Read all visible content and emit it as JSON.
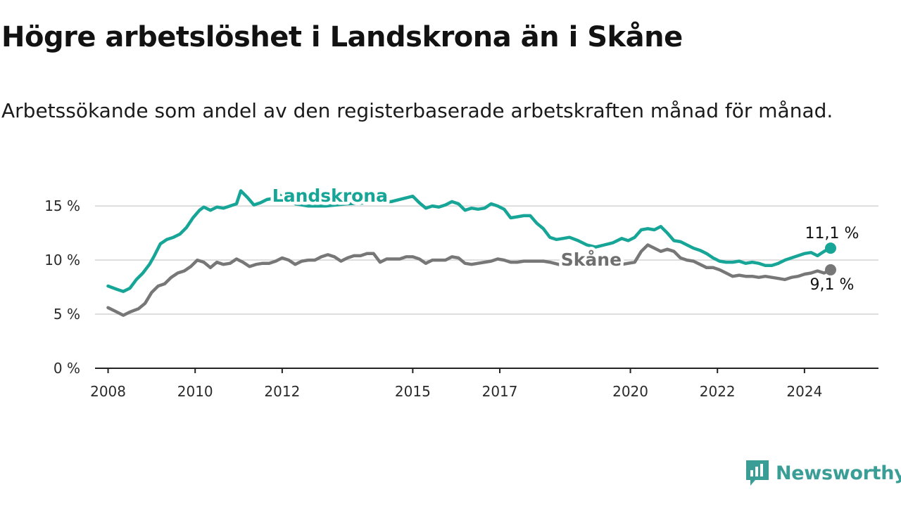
{
  "header": {
    "title": "Högre arbetslöshet i Landskrona än i Skåne",
    "subtitle": "Arbetssökande som andel av den registerbaserade arbetskraften månad för månad."
  },
  "brand": {
    "name": "Newsworthy",
    "icon": "newsworthy-logo-icon",
    "color": "#3a9e96"
  },
  "chart_data": {
    "type": "line",
    "title": "Högre arbetslöshet i Landskrona än i Skåne",
    "subtitle": "Arbetssökande som andel av den registerbaserade arbetskraften månad för månad.",
    "xlabel": "",
    "ylabel": "",
    "xlim": [
      2007.7,
      2025.7
    ],
    "ylim": [
      0,
      16.5
    ],
    "yticks": [
      0,
      5,
      10,
      15
    ],
    "ytick_labels": [
      "0 %",
      "5 %",
      "10 %",
      "15 %"
    ],
    "xticks": [
      2008,
      2010,
      2012,
      2015,
      2017,
      2020,
      2022,
      2024
    ],
    "xtick_labels": [
      "2008",
      "2010",
      "2012",
      "2015",
      "2017",
      "2020",
      "2022",
      "2024"
    ],
    "grid": true,
    "series": [
      {
        "name": "Landskrona",
        "color": "#16a597",
        "end_label": "11,1 %",
        "x": [
          2008.0,
          2008.2,
          2008.35,
          2008.5,
          2008.65,
          2008.8,
          2008.95,
          2009.05,
          2009.2,
          2009.35,
          2009.5,
          2009.65,
          2009.8,
          2009.95,
          2010.1,
          2010.2,
          2010.35,
          2010.5,
          2010.65,
          2010.8,
          2010.95,
          2011.05,
          2011.2,
          2011.35,
          2011.5,
          2011.65,
          2011.8,
          2011.95,
          2012.1,
          2012.3,
          2012.6,
          2013.0,
          2013.5,
          2014.0,
          2014.5,
          2015.0,
          2015.15,
          2015.3,
          2015.45,
          2015.6,
          2015.75,
          2015.9,
          2016.05,
          2016.2,
          2016.35,
          2016.5,
          2016.65,
          2016.8,
          2016.95,
          2017.1,
          2017.25,
          2017.4,
          2017.55,
          2017.7,
          2017.85,
          2018.0,
          2018.15,
          2018.3,
          2018.45,
          2018.6,
          2018.8,
          2019.0,
          2019.2,
          2019.4,
          2019.6,
          2019.8,
          2019.95,
          2020.1,
          2020.25,
          2020.4,
          2020.55,
          2020.7,
          2020.85,
          2021.0,
          2021.15,
          2021.3,
          2021.45,
          2021.6,
          2021.75,
          2021.9,
          2022.05,
          2022.2,
          2022.35,
          2022.5,
          2022.65,
          2022.8,
          2022.95,
          2023.1,
          2023.25,
          2023.4,
          2023.55,
          2023.7,
          2023.85,
          2024.0,
          2024.15,
          2024.3,
          2024.45,
          2024.6
        ],
        "values": [
          7.6,
          7.3,
          7.1,
          7.4,
          8.2,
          8.8,
          9.6,
          10.3,
          11.5,
          11.9,
          12.1,
          12.4,
          13.0,
          13.9,
          14.6,
          14.9,
          14.6,
          14.9,
          14.8,
          15.0,
          15.2,
          16.4,
          15.8,
          15.1,
          15.3,
          15.6,
          15.7,
          16.0,
          15.6,
          15.2,
          15.0,
          15.0,
          15.2,
          15.3,
          15.4,
          15.9,
          15.3,
          14.8,
          15.0,
          14.9,
          15.1,
          15.4,
          15.2,
          14.6,
          14.8,
          14.7,
          14.8,
          15.2,
          15.0,
          14.7,
          13.9,
          14.0,
          14.1,
          14.1,
          13.4,
          12.9,
          12.1,
          11.9,
          12.0,
          12.1,
          11.8,
          11.4,
          11.2,
          11.4,
          11.6,
          12.0,
          11.8,
          12.1,
          12.8,
          12.9,
          12.8,
          13.1,
          12.5,
          11.8,
          11.7,
          11.4,
          11.1,
          10.9,
          10.6,
          10.2,
          9.9,
          9.8,
          9.8,
          9.9,
          9.7,
          9.8,
          9.7,
          9.5,
          9.5,
          9.7,
          10.0,
          10.2,
          10.4,
          10.6,
          10.7,
          10.4,
          10.8,
          11.1
        ]
      },
      {
        "name": "Skåne",
        "color": "#777777",
        "end_label": "9,1 %",
        "x": [
          2008.0,
          2008.15,
          2008.35,
          2008.5,
          2008.7,
          2008.85,
          2009.0,
          2009.15,
          2009.3,
          2009.45,
          2009.6,
          2009.75,
          2009.9,
          2010.05,
          2010.2,
          2010.35,
          2010.5,
          2010.65,
          2010.8,
          2010.95,
          2011.1,
          2011.25,
          2011.4,
          2011.55,
          2011.7,
          2011.85,
          2012.0,
          2012.15,
          2012.3,
          2012.45,
          2012.6,
          2012.75,
          2012.9,
          2013.05,
          2013.2,
          2013.35,
          2013.5,
          2013.65,
          2013.8,
          2013.95,
          2014.1,
          2014.25,
          2014.4,
          2014.55,
          2014.7,
          2014.85,
          2015.0,
          2015.15,
          2015.3,
          2015.45,
          2015.6,
          2015.75,
          2015.9,
          2016.05,
          2016.2,
          2016.35,
          2016.5,
          2016.65,
          2016.8,
          2016.95,
          2017.1,
          2017.25,
          2017.4,
          2017.55,
          2017.7,
          2017.85,
          2018.0,
          2018.15,
          2018.35,
          2018.6,
          2018.9,
          2019.2,
          2019.5,
          2019.8,
          2019.95,
          2020.1,
          2020.25,
          2020.4,
          2020.55,
          2020.7,
          2020.85,
          2021.0,
          2021.15,
          2021.3,
          2021.45,
          2021.6,
          2021.75,
          2021.9,
          2022.05,
          2022.2,
          2022.35,
          2022.5,
          2022.65,
          2022.8,
          2022.95,
          2023.1,
          2023.25,
          2023.4,
          2023.55,
          2023.7,
          2023.85,
          2024.0,
          2024.15,
          2024.3,
          2024.45,
          2024.6
        ],
        "values": [
          5.6,
          5.3,
          4.9,
          5.2,
          5.5,
          6.0,
          7.0,
          7.6,
          7.8,
          8.4,
          8.8,
          9.0,
          9.4,
          10.0,
          9.8,
          9.3,
          9.8,
          9.6,
          9.7,
          10.1,
          9.8,
          9.4,
          9.6,
          9.7,
          9.7,
          9.9,
          10.2,
          10.0,
          9.6,
          9.9,
          10.0,
          10.0,
          10.3,
          10.5,
          10.3,
          9.9,
          10.2,
          10.4,
          10.4,
          10.6,
          10.6,
          9.8,
          10.1,
          10.1,
          10.1,
          10.3,
          10.3,
          10.1,
          9.7,
          10.0,
          10.0,
          10.0,
          10.3,
          10.2,
          9.7,
          9.6,
          9.7,
          9.8,
          9.9,
          10.1,
          10.0,
          9.8,
          9.8,
          9.9,
          9.9,
          9.9,
          9.9,
          9.8,
          9.6,
          9.5,
          9.4,
          9.4,
          9.5,
          9.6,
          9.7,
          9.8,
          10.8,
          11.4,
          11.1,
          10.8,
          11.0,
          10.8,
          10.2,
          10.0,
          9.9,
          9.6,
          9.3,
          9.3,
          9.1,
          8.8,
          8.5,
          8.6,
          8.5,
          8.5,
          8.4,
          8.5,
          8.4,
          8.3,
          8.2,
          8.4,
          8.5,
          8.7,
          8.8,
          9.0,
          8.8,
          9.1
        ]
      }
    ],
    "annotations": [
      {
        "text": "Landskrona",
        "series": "Landskrona",
        "color": "#16a597"
      },
      {
        "text": "Skåne",
        "series": "Skåne",
        "color": "#6f6f6f"
      }
    ]
  }
}
